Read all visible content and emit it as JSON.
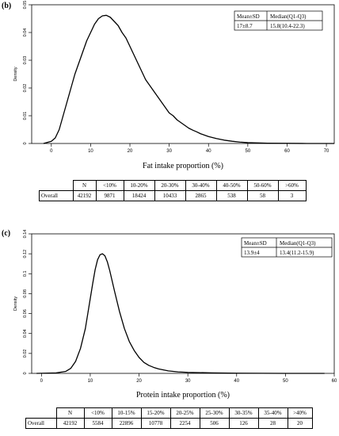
{
  "panels": [
    {
      "label": "(b)",
      "chart_data": {
        "type": "line",
        "title": "",
        "xlabel": "Fat intake proportion (%)",
        "ylabel": "Density",
        "xlim": [
          -5,
          72
        ],
        "ylim": [
          0,
          0.05
        ],
        "xticks": [
          0,
          10,
          20,
          30,
          40,
          50,
          60,
          70
        ],
        "yticks": [
          0,
          0.01,
          0.02,
          0.03,
          0.04,
          0.05
        ],
        "ytick_labels": [
          "0",
          "0.01",
          "0.02",
          "0.03",
          "0.04",
          "0.05"
        ],
        "series": [
          {
            "x": [
              -2,
              0,
              1,
              2,
              3,
              4,
              5,
              6,
              7,
              8,
              9,
              10,
              11,
              12,
              13,
              14,
              15,
              16,
              17,
              18,
              19,
              20,
              21,
              22,
              23,
              24,
              25,
              26,
              27,
              28,
              29,
              30,
              31,
              32,
              33,
              34,
              35,
              36,
              37,
              38,
              40,
              42,
              44,
              46,
              48,
              50,
              55,
              60,
              65,
              70,
              72
            ],
            "y": [
              0,
              0.0008,
              0.002,
              0.005,
              0.01,
              0.015,
              0.02,
              0.025,
              0.029,
              0.033,
              0.037,
              0.04,
              0.043,
              0.045,
              0.046,
              0.0462,
              0.0455,
              0.044,
              0.0425,
              0.04,
              0.038,
              0.035,
              0.032,
              0.029,
              0.026,
              0.023,
              0.021,
              0.019,
              0.017,
              0.015,
              0.013,
              0.011,
              0.01,
              0.0085,
              0.0075,
              0.0065,
              0.0055,
              0.0048,
              0.0042,
              0.0035,
              0.0025,
              0.0018,
              0.0012,
              0.0008,
              0.0005,
              0.0003,
              0.0001,
              5e-05,
              0,
              0,
              0
            ]
          }
        ]
      },
      "summary": {
        "headers": [
          "Mean±SD",
          "Median(Q1-Q3)"
        ],
        "values": [
          "17±8.7",
          "15.8(10.4-22.3)"
        ]
      },
      "table": {
        "headers": [
          "N",
          "<10%",
          "10-20%",
          "20-30%",
          "30-40%",
          "40-50%",
          "50-60%",
          ">60%"
        ],
        "row_label": "Overall",
        "values": [
          "42192",
          "9871",
          "18424",
          "10433",
          "2865",
          "538",
          "58",
          "3"
        ]
      }
    },
    {
      "label": "(c)",
      "chart_data": {
        "type": "line",
        "title": "",
        "xlabel": "Protein intake proportion (%)",
        "ylabel": "Density",
        "xlim": [
          -2,
          60
        ],
        "ylim": [
          0,
          0.14
        ],
        "xticks": [
          0,
          10,
          20,
          30,
          40,
          50,
          60
        ],
        "yticks": [
          0,
          0.02,
          0.04,
          0.06,
          0.08,
          0.1,
          0.12,
          0.14
        ],
        "ytick_labels": [
          "0",
          "0.02",
          "0.04",
          "0.06",
          "0.08",
          "0.1",
          "0.12",
          "0.14"
        ],
        "series": [
          {
            "x": [
              -1,
              3,
              5,
              6,
              7,
              8,
              9,
              10,
              10.5,
              11,
              11.5,
              12,
              12.5,
              13,
              13.5,
              14,
              15,
              16,
              17,
              18,
              19,
              20,
              21,
              22,
              23,
              24,
              25,
              26,
              28,
              30,
              35,
              40,
              50,
              58
            ],
            "y": [
              0,
              0.0005,
              0.002,
              0.005,
              0.012,
              0.025,
              0.045,
              0.075,
              0.09,
              0.104,
              0.114,
              0.119,
              0.12,
              0.118,
              0.112,
              0.103,
              0.082,
              0.062,
              0.045,
              0.032,
              0.023,
              0.016,
              0.011,
              0.008,
              0.006,
              0.0045,
              0.0035,
              0.0025,
              0.0015,
              0.001,
              0.0005,
              0.0002,
              0,
              0
            ]
          }
        ]
      },
      "summary": {
        "headers": [
          "Mean±SD",
          "Median(Q1-Q3)"
        ],
        "values": [
          "13.9±4",
          "13.4(11.2-15.9)"
        ]
      },
      "table": {
        "headers": [
          "N",
          "<10%",
          "10-15%",
          "15-20%",
          "20-25%",
          "25-30%",
          "30-35%",
          "35-40%",
          ">40%"
        ],
        "row_label": "Overall",
        "values": [
          "42192",
          "5584",
          "22896",
          "10778",
          "2254",
          "506",
          "126",
          "28",
          "20"
        ]
      }
    }
  ]
}
